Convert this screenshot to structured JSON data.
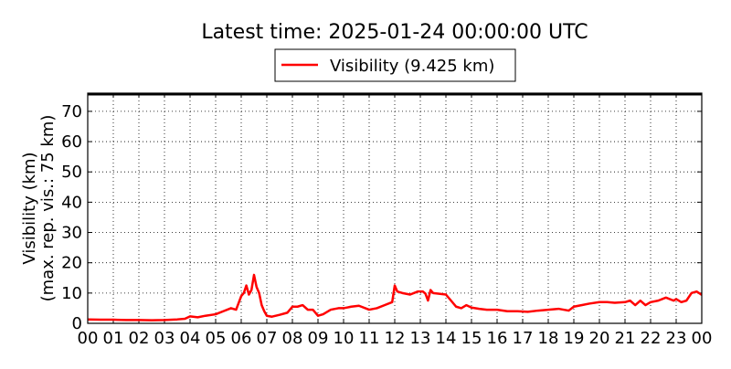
{
  "chart_data": {
    "type": "line",
    "title": "Latest time: 2025-01-24 00:00:00 UTC",
    "ylabel_lines": [
      "Visibility (km)",
      "(max. rep. vis.: 75 km)"
    ],
    "xlabel": "",
    "xlim": [
      0,
      24
    ],
    "ylim": [
      0,
      76
    ],
    "x_tick_labels": [
      "00",
      "01",
      "02",
      "03",
      "04",
      "05",
      "06",
      "07",
      "08",
      "09",
      "10",
      "11",
      "12",
      "13",
      "14",
      "15",
      "16",
      "17",
      "18",
      "19",
      "20",
      "21",
      "22",
      "23",
      "00"
    ],
    "y_ticks": [
      0,
      10,
      20,
      30,
      40,
      50,
      60,
      70
    ],
    "grid": true,
    "legend_position": "top-center, above plot",
    "series": [
      {
        "name": "Visibility (9.425 km)",
        "color": "#ff0000",
        "x": [
          0.0,
          0.5,
          1.0,
          1.5,
          2.0,
          2.5,
          3.0,
          3.5,
          3.8,
          4.0,
          4.3,
          4.6,
          5.0,
          5.3,
          5.6,
          5.8,
          6.0,
          6.1,
          6.2,
          6.3,
          6.4,
          6.5,
          6.6,
          6.7,
          6.8,
          6.9,
          7.0,
          7.2,
          7.5,
          7.8,
          8.0,
          8.2,
          8.4,
          8.6,
          8.8,
          9.0,
          9.2,
          9.5,
          9.8,
          10.0,
          10.3,
          10.6,
          11.0,
          11.3,
          11.6,
          11.9,
          12.0,
          12.1,
          12.3,
          12.6,
          12.9,
          13.1,
          13.2,
          13.3,
          13.4,
          13.5,
          13.7,
          14.0,
          14.2,
          14.4,
          14.6,
          14.8,
          15.0,
          15.3,
          15.6,
          16.0,
          16.4,
          16.8,
          17.2,
          17.6,
          18.0,
          18.4,
          18.8,
          19.0,
          19.3,
          19.6,
          20.0,
          20.3,
          20.6,
          21.0,
          21.2,
          21.4,
          21.6,
          21.8,
          22.0,
          22.3,
          22.6,
          22.9,
          23.0,
          23.2,
          23.4,
          23.6,
          23.8,
          24.0
        ],
        "y": [
          1.3,
          1.2,
          1.2,
          1.1,
          1.1,
          1.0,
          1.1,
          1.3,
          1.5,
          2.3,
          2.0,
          2.5,
          3.0,
          4.0,
          5.0,
          4.5,
          9.0,
          10.0,
          12.5,
          9.5,
          11.0,
          16.0,
          12.0,
          10.0,
          6.0,
          4.0,
          2.5,
          2.2,
          2.8,
          3.5,
          5.5,
          5.5,
          6.0,
          4.5,
          4.5,
          2.5,
          3.0,
          4.5,
          5.0,
          5.0,
          5.5,
          5.8,
          4.5,
          5.0,
          6.0,
          7.0,
          12.5,
          10.5,
          10.0,
          9.5,
          10.5,
          10.5,
          9.8,
          7.5,
          11.0,
          10.0,
          9.8,
          9.5,
          7.5,
          5.5,
          5.0,
          6.0,
          5.2,
          4.8,
          4.5,
          4.5,
          4.0,
          4.0,
          3.8,
          4.2,
          4.5,
          4.8,
          4.2,
          5.5,
          6.0,
          6.5,
          7.0,
          7.0,
          6.8,
          7.0,
          7.5,
          6.0,
          7.5,
          6.0,
          7.0,
          7.5,
          8.5,
          7.5,
          8.0,
          7.0,
          7.5,
          10.0,
          10.5,
          9.4
        ]
      }
    ]
  }
}
